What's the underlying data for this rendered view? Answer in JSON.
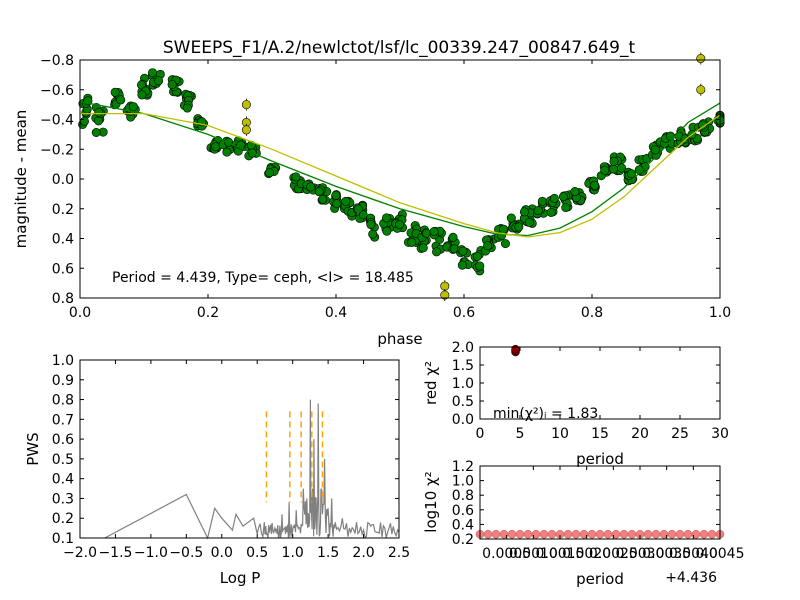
{
  "figure": {
    "title": "SWEEPS_F1/A.2/newlctot/lsf/lc_00339.247_00847.649_t",
    "annotation": "Period = 4.439, Type= ceph, <I> = 18.485"
  },
  "chart_data": [
    {
      "id": "light-curve",
      "type": "scatter",
      "title": "SWEEPS_F1/A.2/newlctot/lsf/lc_00339.247_00847.649_t",
      "xlabel": "phase",
      "ylabel": "magnitude - mean",
      "xlim": [
        0.0,
        1.0
      ],
      "ylim": [
        0.8,
        -0.8
      ],
      "y_inverted": true,
      "xticks": [
        "0.0",
        "0.2",
        "0.4",
        "0.6",
        "0.8",
        "1.0"
      ],
      "yticks": [
        "−0.8",
        "−0.6",
        "−0.4",
        "−0.2",
        "0.0",
        "0.2",
        "0.4",
        "0.6",
        "0.8"
      ],
      "colors": {
        "green": "#008000",
        "yellow": "#bfbf00",
        "edge": "#000000"
      },
      "series": [
        {
          "color": "green",
          "marker": "circle",
          "clusters": [
            [
              0.01,
              -0.45,
              0.22
            ],
            [
              0.03,
              -0.4,
              0.18
            ],
            [
              0.06,
              -0.55,
              0.12
            ],
            [
              0.08,
              -0.45,
              0.1
            ],
            [
              0.1,
              -0.62,
              0.12
            ],
            [
              0.12,
              -0.68,
              0.1
            ],
            [
              0.15,
              -0.62,
              0.1
            ],
            [
              0.17,
              -0.52,
              0.1
            ],
            [
              0.19,
              -0.38,
              0.06
            ],
            [
              0.21,
              -0.25,
              0.1
            ],
            [
              0.23,
              -0.22,
              0.08
            ],
            [
              0.25,
              -0.22,
              0.08
            ],
            [
              0.27,
              -0.18,
              0.1
            ],
            [
              0.3,
              -0.05,
              0.06
            ],
            [
              0.34,
              0.02,
              0.1
            ],
            [
              0.36,
              0.05,
              0.1
            ],
            [
              0.38,
              0.1,
              0.1
            ],
            [
              0.4,
              0.15,
              0.1
            ],
            [
              0.42,
              0.2,
              0.1
            ],
            [
              0.44,
              0.22,
              0.1
            ],
            [
              0.46,
              0.32,
              0.16
            ],
            [
              0.48,
              0.3,
              0.14
            ],
            [
              0.5,
              0.3,
              0.14
            ],
            [
              0.52,
              0.38,
              0.16
            ],
            [
              0.54,
              0.4,
              0.14
            ],
            [
              0.56,
              0.42,
              0.14
            ],
            [
              0.58,
              0.45,
              0.12
            ],
            [
              0.6,
              0.52,
              0.14
            ],
            [
              0.62,
              0.55,
              0.14
            ],
            [
              0.64,
              0.45,
              0.12
            ],
            [
              0.66,
              0.38,
              0.12
            ],
            [
              0.68,
              0.3,
              0.1
            ],
            [
              0.7,
              0.25,
              0.1
            ],
            [
              0.72,
              0.2,
              0.1
            ],
            [
              0.74,
              0.18,
              0.1
            ],
            [
              0.76,
              0.15,
              0.1
            ],
            [
              0.78,
              0.1,
              0.1
            ],
            [
              0.8,
              0.05,
              0.1
            ],
            [
              0.82,
              -0.05,
              0.1
            ],
            [
              0.84,
              -0.1,
              0.1
            ],
            [
              0.86,
              0.0,
              0.1
            ],
            [
              0.88,
              -0.1,
              0.1
            ],
            [
              0.9,
              -0.2,
              0.1
            ],
            [
              0.92,
              -0.25,
              0.1
            ],
            [
              0.94,
              -0.28,
              0.1
            ],
            [
              0.96,
              -0.3,
              0.1
            ],
            [
              0.98,
              -0.35,
              0.08
            ],
            [
              1.0,
              -0.4,
              0.06
            ]
          ]
        },
        {
          "color": "yellow",
          "marker": "circle",
          "points": [
            [
              0.26,
              -0.5
            ],
            [
              0.26,
              -0.38
            ],
            [
              0.26,
              -0.33
            ],
            [
              0.57,
              0.72
            ],
            [
              0.57,
              0.78
            ],
            [
              0.97,
              -0.81
            ],
            [
              0.97,
              -0.6
            ]
          ]
        }
      ],
      "fits": [
        {
          "color": "green",
          "points": [
            [
              0.0,
              -0.52
            ],
            [
              0.1,
              -0.44
            ],
            [
              0.2,
              -0.3
            ],
            [
              0.3,
              -0.12
            ],
            [
              0.4,
              0.05
            ],
            [
              0.5,
              0.2
            ],
            [
              0.6,
              0.32
            ],
            [
              0.65,
              0.37
            ],
            [
              0.7,
              0.38
            ],
            [
              0.75,
              0.33
            ],
            [
              0.8,
              0.22
            ],
            [
              0.85,
              0.06
            ],
            [
              0.9,
              -0.15
            ],
            [
              0.95,
              -0.38
            ],
            [
              1.0,
              -0.51
            ]
          ]
        },
        {
          "color": "yellow",
          "points": [
            [
              0.0,
              -0.44
            ],
            [
              0.1,
              -0.44
            ],
            [
              0.2,
              -0.36
            ],
            [
              0.3,
              -0.2
            ],
            [
              0.4,
              -0.02
            ],
            [
              0.5,
              0.16
            ],
            [
              0.6,
              0.3
            ],
            [
              0.65,
              0.36
            ],
            [
              0.7,
              0.39
            ],
            [
              0.75,
              0.36
            ],
            [
              0.8,
              0.27
            ],
            [
              0.85,
              0.12
            ],
            [
              0.9,
              -0.08
            ],
            [
              0.95,
              -0.28
            ],
            [
              1.0,
              -0.43
            ]
          ]
        }
      ]
    },
    {
      "id": "periodogram",
      "type": "line",
      "xlabel": "Log P",
      "ylabel": "PWS",
      "xlim": [
        -2.0,
        2.5
      ],
      "ylim": [
        0.1,
        1.0
      ],
      "xticks": [
        "−2.0",
        "−1.5",
        "−1.0",
        "−0.5",
        "0.0",
        "0.5",
        "1.0",
        "1.5",
        "2.0",
        "2.5"
      ],
      "yticks": [
        "0.1",
        "0.2",
        "0.3",
        "0.4",
        "0.5",
        "0.6",
        "0.7",
        "0.8",
        "0.9",
        "1.0"
      ],
      "colors": {
        "line": "#808080",
        "marker": "#ffa500"
      },
      "series": [
        {
          "points": [
            [
              -1.65,
              0.1
            ],
            [
              -0.5,
              0.32
            ],
            [
              -0.2,
              0.1
            ],
            [
              -0.1,
              0.25
            ],
            [
              0.0,
              0.2
            ],
            [
              0.15,
              0.14
            ],
            [
              0.2,
              0.22
            ],
            [
              0.3,
              0.16
            ],
            [
              0.45,
              0.2
            ],
            [
              0.5,
              0.12
            ],
            [
              0.6,
              0.18
            ],
            [
              0.65,
              0.1
            ],
            [
              0.7,
              0.12
            ],
            [
              0.75,
              0.15
            ],
            [
              0.8,
              0.1
            ],
            [
              0.85,
              0.22
            ],
            [
              0.9,
              0.12
            ],
            [
              0.95,
              0.28
            ],
            [
              1.0,
              0.14
            ],
            [
              1.05,
              0.24
            ],
            [
              1.1,
              0.15
            ],
            [
              1.15,
              0.35
            ],
            [
              1.2,
              0.3
            ],
            [
              1.25,
              0.8
            ],
            [
              1.28,
              0.35
            ],
            [
              1.3,
              0.6
            ],
            [
              1.33,
              0.3
            ],
            [
              1.36,
              0.78
            ],
            [
              1.4,
              0.35
            ],
            [
              1.45,
              0.5
            ],
            [
              1.5,
              0.25
            ],
            [
              1.55,
              0.3
            ],
            [
              1.6,
              0.18
            ],
            [
              1.7,
              0.2
            ],
            [
              1.8,
              0.15
            ],
            [
              1.9,
              0.18
            ],
            [
              2.0,
              0.14
            ],
            [
              2.1,
              0.16
            ],
            [
              2.2,
              0.13
            ],
            [
              2.3,
              0.15
            ],
            [
              2.4,
              0.12
            ],
            [
              2.5,
              0.13
            ]
          ]
        }
      ],
      "markers": [
        0.63,
        0.96,
        1.12,
        1.27,
        1.42
      ],
      "marker_range": [
        0.28,
        0.74
      ]
    },
    {
      "id": "red-chi2",
      "type": "scatter",
      "xlabel": "period",
      "ylabel": "red χ²",
      "xlim": [
        0,
        30
      ],
      "ylim": [
        0.0,
        2.0
      ],
      "xticks": [
        "0",
        "5",
        "10",
        "15",
        "20",
        "25",
        "30"
      ],
      "yticks": [
        "0.0",
        "0.5",
        "1.0",
        "1.5",
        "2.0"
      ],
      "annotation": "min(χ²)ᵢ = 1.83",
      "colors": {
        "marker": "#8b0000"
      },
      "points": [
        [
          4.44,
          1.86
        ],
        [
          4.44,
          1.9
        ],
        [
          4.44,
          1.94
        ]
      ]
    },
    {
      "id": "log-chi2",
      "type": "scatter",
      "xlabel": "period",
      "ylabel": "log10 χ²",
      "offset_label": "+4.436",
      "xlim": [
        0.0,
        0.0045
      ],
      "ylim": [
        0.2,
        1.2
      ],
      "xticks": [
        "0.0010",
        "0.0015",
        "0.0020",
        "0.0025",
        "0.0030",
        "0.0035",
        "0.0040",
        "0.0045"
      ],
      "xtick_first": "0.0005",
      "yticks": [
        "0.2",
        "0.4",
        "0.6",
        "0.8",
        "1.0",
        "1.2"
      ],
      "colors": {
        "marker": "#f08080"
      },
      "y_value": 0.265,
      "n_points": 31
    }
  ]
}
